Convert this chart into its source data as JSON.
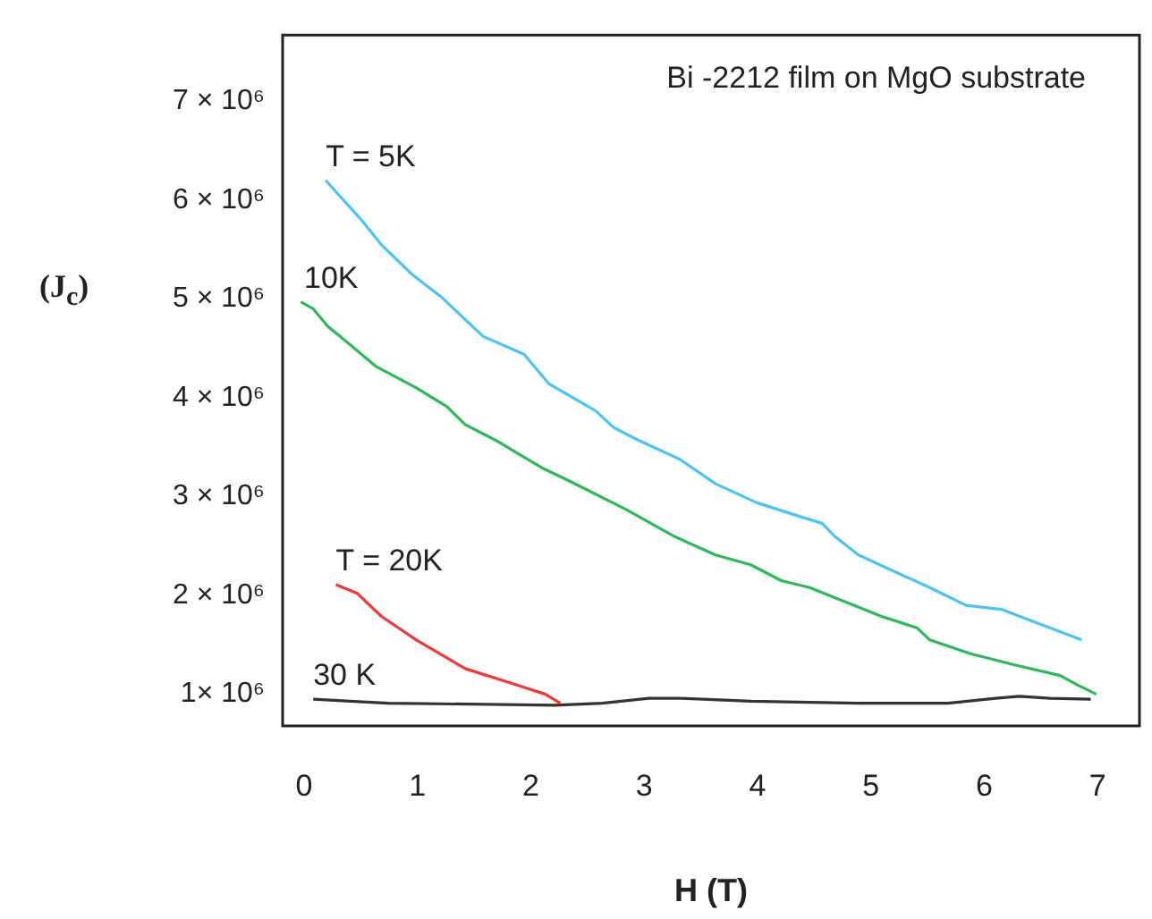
{
  "chart_data": {
    "type": "line",
    "xlabel": "H (T)",
    "ylabel": "(J$_{c}$)",
    "annotations": [
      "Bi -2212 film on MgO substrate"
    ],
    "xlim": [
      -0.19,
      7.37
    ],
    "xticks": [
      0,
      1,
      2,
      3,
      4,
      5,
      6,
      7
    ],
    "ylim": [
      680000,
      7670000
    ],
    "yticks": [
      {
        "value": 1000000,
        "label": "1× 10⁶"
      },
      {
        "value": 2000000,
        "label": "2 × 10⁶"
      },
      {
        "value": 3000000,
        "label": "3 × 10⁶"
      },
      {
        "value": 4000000,
        "label": "4 × 10⁶"
      },
      {
        "value": 5000000,
        "label": "5 × 10⁶"
      },
      {
        "value": 6000000,
        "label": "6 × 10⁶"
      },
      {
        "value": 7000000,
        "label": "7 × 10⁶"
      }
    ],
    "grid": false,
    "legend": false,
    "marker": "none",
    "line_style": "solid",
    "series": [
      {
        "name": "T = 5K",
        "color": "#4dc3f5",
        "x": [
          0.19,
          0.52,
          0.68,
          0.95,
          1.21,
          1.58,
          1.94,
          2.16,
          2.57,
          2.73,
          2.95,
          3.31,
          3.63,
          3.99,
          4.37,
          4.57,
          4.68,
          4.89,
          5.25,
          5.52,
          5.84,
          6.15,
          6.47,
          6.86
        ],
        "values": [
          6200000,
          5780000,
          5550000,
          5250000,
          5020000,
          4620000,
          4440000,
          4140000,
          3870000,
          3700000,
          3570000,
          3380000,
          3130000,
          2940000,
          2800000,
          2730000,
          2600000,
          2410000,
          2220000,
          2080000,
          1900000,
          1860000,
          1720000,
          1550000
        ]
      },
      {
        "name": "10K",
        "color": "#2fb85a",
        "x": [
          -0.03,
          0.08,
          0.21,
          0.36,
          0.63,
          0.99,
          1.26,
          1.42,
          1.69,
          2.1,
          2.32,
          2.84,
          3.26,
          3.63,
          3.94,
          4.21,
          4.46,
          5.09,
          5.41,
          5.52,
          5.88,
          6.26,
          6.67,
          6.83,
          6.99
        ],
        "values": [
          4970000,
          4900000,
          4720000,
          4580000,
          4320000,
          4100000,
          3910000,
          3730000,
          3570000,
          3290000,
          3170000,
          2870000,
          2600000,
          2410000,
          2310000,
          2150000,
          2080000,
          1790000,
          1670000,
          1550000,
          1410000,
          1300000,
          1190000,
          1090000,
          1000000
        ]
      },
      {
        "name": "T = 20K",
        "color": "#f03a3a",
        "x": [
          0.28,
          0.47,
          0.68,
          0.99,
          1.42,
          1.89,
          2.13,
          2.26
        ],
        "values": [
          2110000,
          2020000,
          1790000,
          1550000,
          1260000,
          1090000,
          1000000,
          910000
        ]
      },
      {
        "name": "30 K",
        "color": "#333333",
        "x": [
          0.08,
          0.74,
          2.21,
          2.63,
          3.04,
          3.31,
          3.94,
          4.89,
          5.68,
          6.1,
          6.31,
          6.58,
          6.94
        ],
        "values": [
          950000,
          910000,
          890000,
          910000,
          960000,
          960000,
          930000,
          910000,
          910000,
          960000,
          980000,
          960000,
          950000
        ]
      }
    ]
  }
}
